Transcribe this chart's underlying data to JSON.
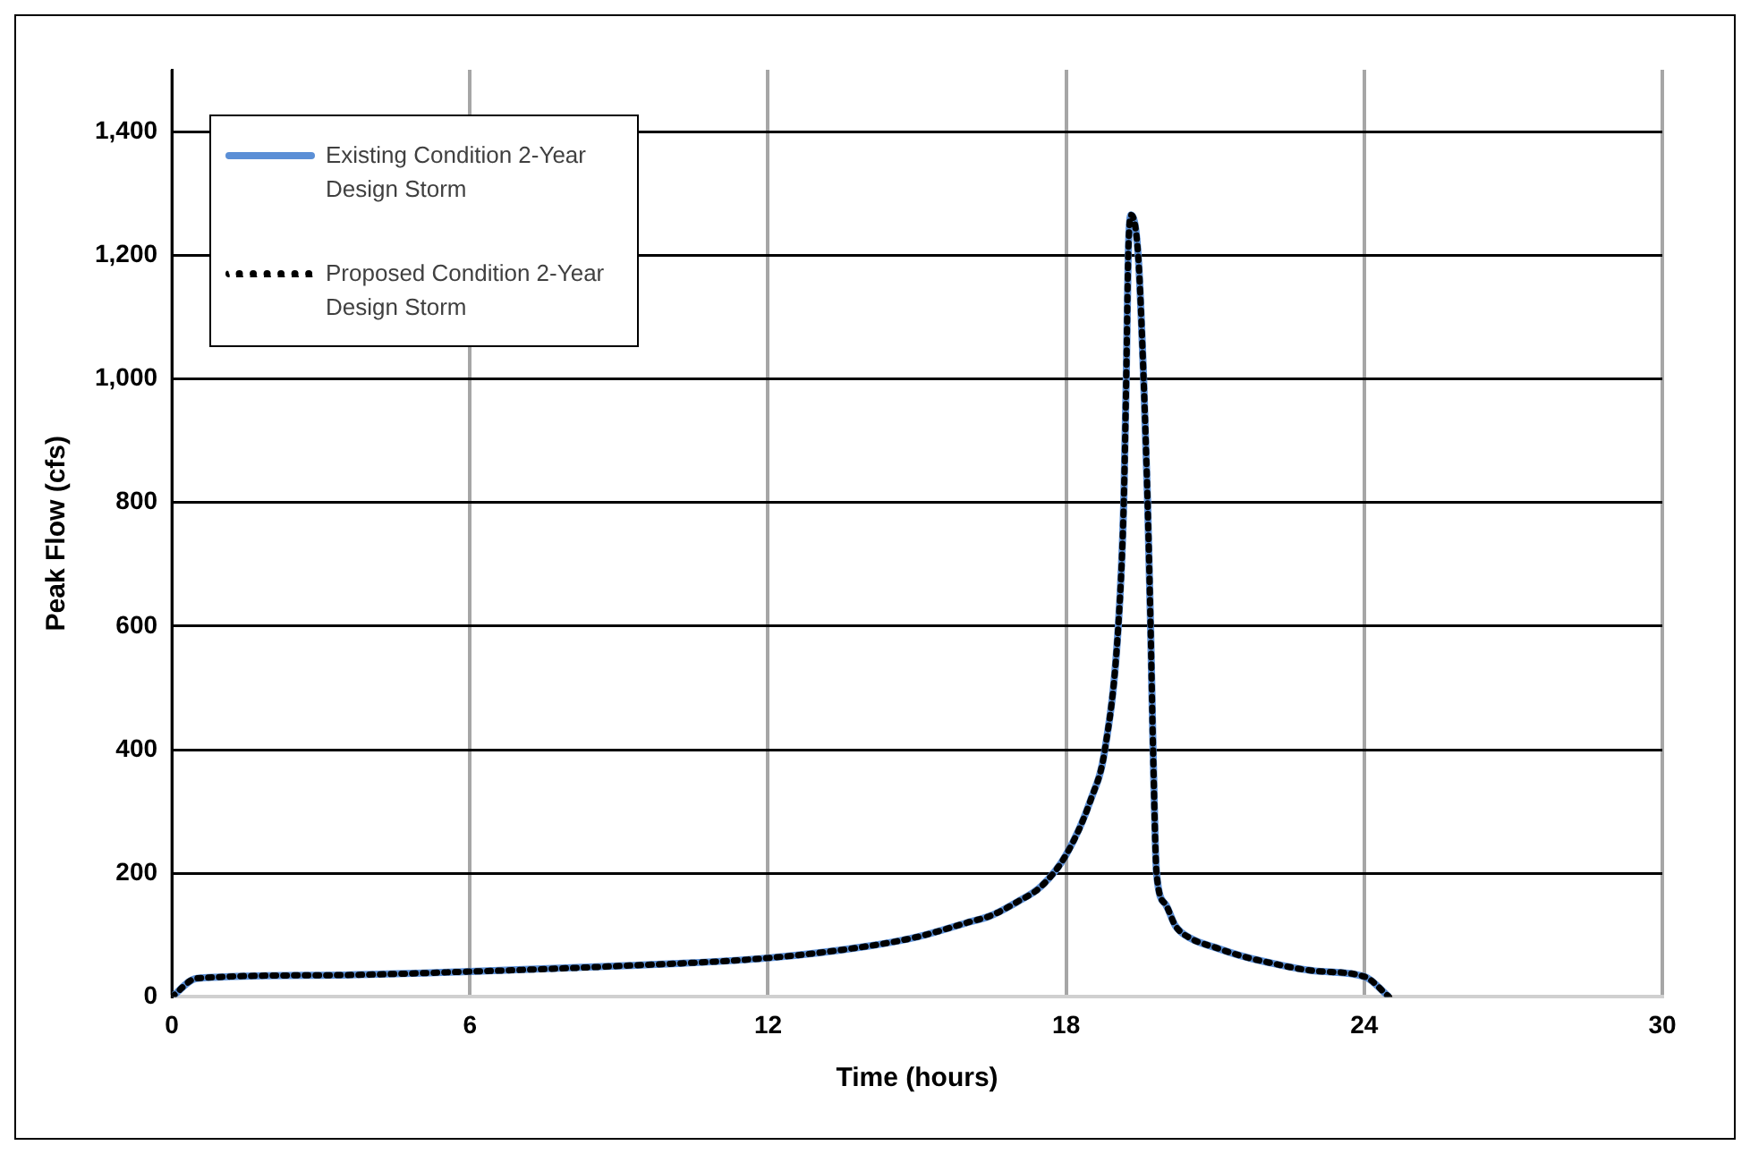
{
  "chart_data": {
    "type": "line",
    "xlabel": "Time (hours)",
    "ylabel": "Peak Flow (cfs)",
    "x": [
      0,
      0.5,
      3,
      6,
      9,
      12,
      14,
      15,
      16,
      16.5,
      17,
      17.5,
      18,
      18.5,
      18.78,
      19.05,
      19.16,
      19.21,
      19.25,
      19.31,
      19.45,
      19.56,
      19.64,
      19.7,
      19.75,
      19.82,
      20,
      20.2,
      20.5,
      21,
      21.5,
      22,
      23,
      24,
      24.5
    ],
    "series": [
      {
        "name": "Existing Condition 2-Year Design Storm",
        "color": "#5b8fd6",
        "line_style": "solid",
        "values": [
          0,
          30,
          35,
          41,
          50,
          63,
          82,
          97,
          120,
          132,
          153,
          179,
          230,
          320,
          400,
          600,
          800,
          1000,
          1200,
          1265,
          1200,
          1000,
          800,
          600,
          400,
          200,
          150,
          115,
          95,
          80,
          67,
          57,
          42,
          33,
          0
        ]
      },
      {
        "name": "Proposed Condition 2-Year Design Storm",
        "color": "#000000",
        "line_style": "dotted",
        "values": [
          0,
          30,
          35,
          41,
          50,
          63,
          82,
          97,
          120,
          132,
          153,
          179,
          230,
          320,
          400,
          600,
          800,
          1000,
          1200,
          1265,
          1200,
          1000,
          800,
          600,
          400,
          200,
          150,
          115,
          95,
          80,
          67,
          57,
          42,
          33,
          0
        ]
      }
    ],
    "xlim": [
      0,
      30
    ],
    "xticks": [
      0,
      6,
      12,
      18,
      24,
      30
    ],
    "ylim": [
      0,
      1500
    ],
    "yticks": [
      0,
      200,
      400,
      600,
      800,
      {
        "value": 1000,
        "label": "1,000"
      },
      {
        "value": 1200,
        "label": "1,200"
      },
      {
        "value": 1400,
        "label": "1,400"
      }
    ],
    "grid": true,
    "legend": "top left",
    "marker": "none"
  }
}
